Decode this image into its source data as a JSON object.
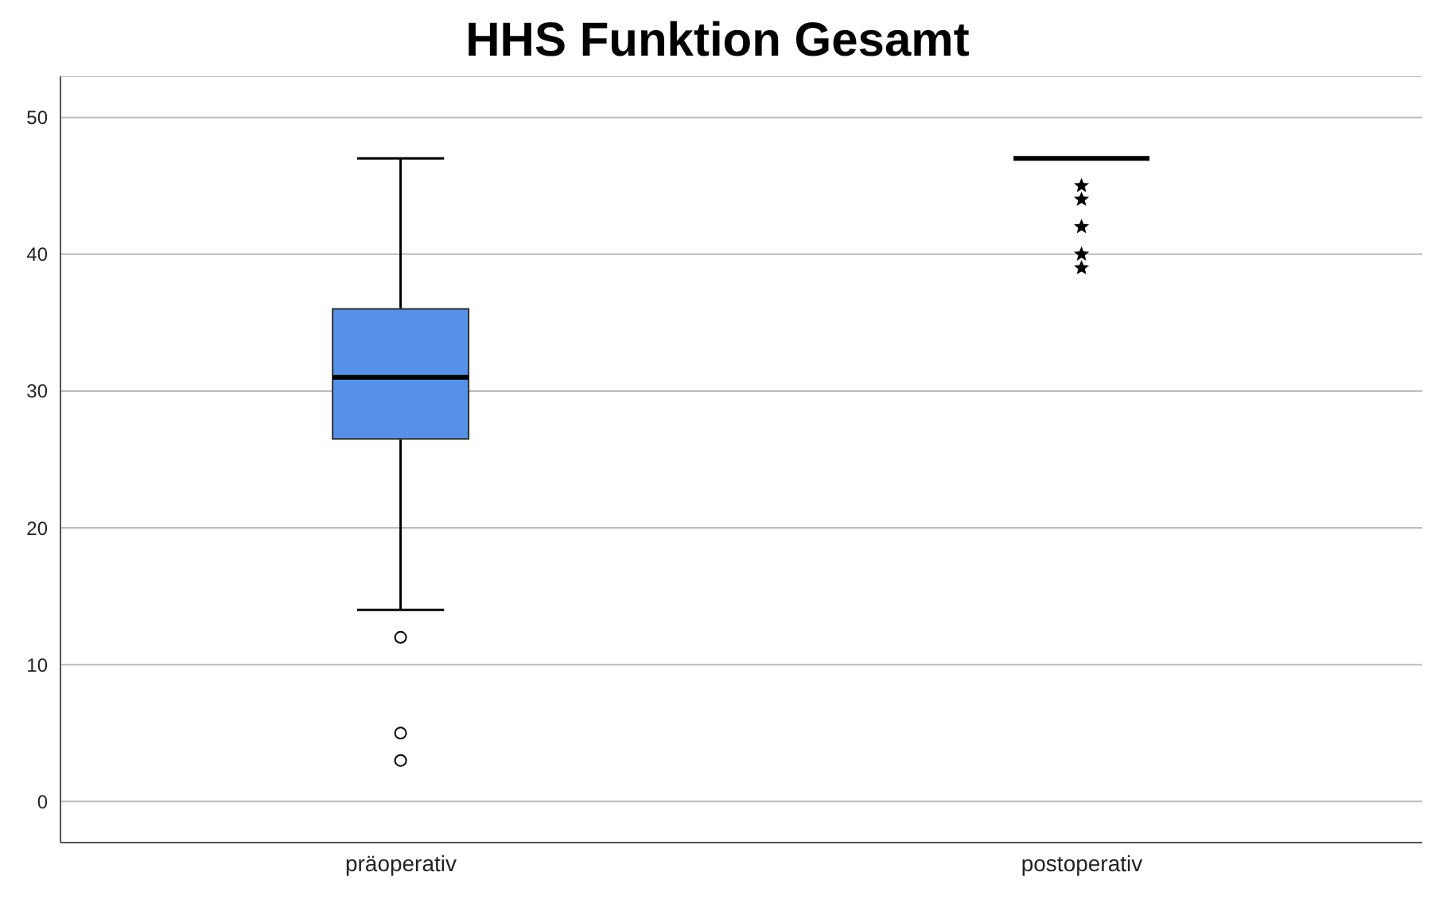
{
  "chart_data": {
    "type": "box",
    "title": "HHS Funktion Gesamt",
    "categories": [
      "präoperativ",
      "postoperativ"
    ],
    "colors": [
      "#5591e6",
      "#000000"
    ],
    "boxes": [
      {
        "low": 14,
        "q1": 26.5,
        "median": 31,
        "q3": 36,
        "high": 47,
        "outliers": [
          12,
          5,
          3
        ]
      },
      {
        "low": 47,
        "q1": 47,
        "median": 47,
        "q3": 47,
        "high": 47,
        "outliers": [
          45,
          44,
          42,
          40,
          39
        ]
      }
    ],
    "ylim": [
      -3,
      53
    ],
    "yticks": [
      0,
      10,
      20,
      30,
      40,
      50
    ],
    "grid": "y"
  }
}
